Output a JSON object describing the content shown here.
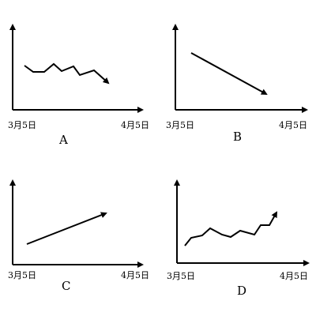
{
  "diagram": {
    "stroke_color": "#000000",
    "background_color": "#ffffff",
    "panels": [
      {
        "letter": "A",
        "x_start_label": "3月5日",
        "x_end_label": "4月5日",
        "trend": "fluctuating downward"
      },
      {
        "letter": "B",
        "x_start_label": "3月5日",
        "x_end_label": "4月5日",
        "trend": "straight downward"
      },
      {
        "letter": "C",
        "x_start_label": "3月5日",
        "x_end_label": "4月5日",
        "trend": "straight upward"
      },
      {
        "letter": "D",
        "x_start_label": "3月5日",
        "x_end_label": "4月5日",
        "trend": "fluctuating upward"
      }
    ]
  }
}
